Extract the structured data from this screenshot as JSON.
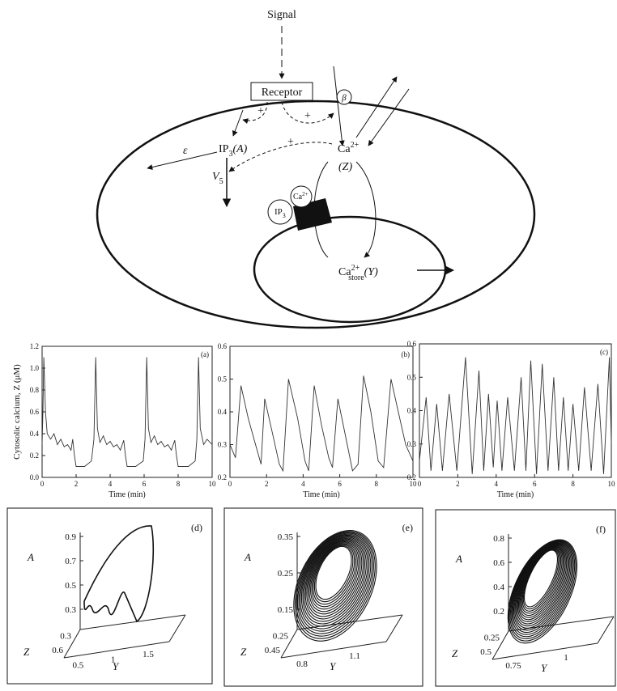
{
  "diagram": {
    "signal": "Signal",
    "receptor": "Receptor",
    "plus": [
      "+",
      "+",
      "+"
    ],
    "beta": "β",
    "epsilon": "ε",
    "ip3": {
      "text": "IP",
      "sub": "3",
      "suffix": "(A)"
    },
    "v5": {
      "text": "V",
      "sub": "5"
    },
    "ca": {
      "text": "Ca",
      "sup": "2+",
      "below": "(Z)"
    },
    "ca_store": {
      "text": "Ca",
      "sup": "2+",
      "sub": "store",
      "suffix": "(Y)"
    },
    "channel": {
      "ip3": "IP",
      "ip3_sub": "3",
      "ca": "Ca",
      "ca_sup": "2+"
    }
  },
  "chart_data": [
    {
      "type": "line",
      "label": "(a)",
      "ylabel": "Cytosolic calcium, Z (μM)",
      "xlabel": "Time (min)",
      "color": "#333",
      "xlim": [
        0,
        10
      ],
      "ylim": [
        0,
        1.2
      ],
      "xticks": [
        0,
        2,
        4,
        6,
        8,
        10
      ],
      "yticks": [
        {
          "value": 0,
          "label": "0.0"
        },
        0.2,
        0.4,
        0.6,
        0.8,
        {
          "value": 1,
          "label": "1.0"
        },
        1.2
      ],
      "x": [
        0,
        0.05,
        0.1,
        0.2,
        0.3,
        0.5,
        0.7,
        0.9,
        1.1,
        1.3,
        1.5,
        1.7,
        1.8,
        1.9,
        2.0,
        2.5,
        2.9,
        3.05,
        3.15,
        3.25,
        3.4,
        3.6,
        3.8,
        4.0,
        4.2,
        4.4,
        4.6,
        4.8,
        4.9,
        5.0,
        5.5,
        5.95,
        6.05,
        6.15,
        6.25,
        6.4,
        6.6,
        6.8,
        7.0,
        7.2,
        7.4,
        7.6,
        7.8,
        7.9,
        8.0,
        8.6,
        9.0,
        9.1,
        9.2,
        9.3,
        9.5,
        9.7,
        10
      ],
      "values": [
        0.3,
        0.6,
        1.1,
        0.6,
        0.4,
        0.35,
        0.4,
        0.3,
        0.35,
        0.28,
        0.3,
        0.25,
        0.35,
        0.2,
        0.1,
        0.1,
        0.15,
        0.35,
        1.1,
        0.45,
        0.32,
        0.38,
        0.3,
        0.33,
        0.28,
        0.3,
        0.25,
        0.34,
        0.2,
        0.1,
        0.1,
        0.15,
        0.35,
        1.1,
        0.45,
        0.32,
        0.38,
        0.3,
        0.33,
        0.28,
        0.3,
        0.25,
        0.34,
        0.2,
        0.1,
        0.1,
        0.15,
        0.35,
        1.1,
        0.45,
        0.3,
        0.35,
        0.3
      ]
    },
    {
      "type": "line",
      "label": "(b)",
      "xlabel": "Time (min)",
      "color": "#333",
      "xlim": [
        0,
        10
      ],
      "ylim": [
        0.2,
        0.6
      ],
      "xticks": [
        0,
        2,
        4,
        6,
        8,
        10
      ],
      "yticks": [
        0.2,
        0.3,
        0.4,
        0.5,
        0.6
      ],
      "x": [
        0,
        0.3,
        0.6,
        1.0,
        1.4,
        1.7,
        1.9,
        2.3,
        2.7,
        2.9,
        3.2,
        3.7,
        4.1,
        4.3,
        4.6,
        5.0,
        5.4,
        5.6,
        5.9,
        6.3,
        6.7,
        7.0,
        7.3,
        7.7,
        8.1,
        8.4,
        8.8,
        9.2,
        9.6,
        10
      ],
      "values": [
        0.3,
        0.26,
        0.48,
        0.38,
        0.3,
        0.24,
        0.44,
        0.34,
        0.24,
        0.22,
        0.5,
        0.38,
        0.25,
        0.22,
        0.48,
        0.36,
        0.26,
        0.23,
        0.44,
        0.33,
        0.22,
        0.24,
        0.51,
        0.4,
        0.25,
        0.23,
        0.5,
        0.4,
        0.3,
        0.25
      ]
    },
    {
      "type": "line",
      "label": "(c)",
      "xlabel": "Time (min)",
      "color": "#333",
      "xlim": [
        0,
        10
      ],
      "ylim": [
        0.2,
        0.6
      ],
      "xticks": [
        0,
        2,
        4,
        6,
        8,
        10
      ],
      "yticks": [
        0.2,
        0.3,
        0.4,
        0.5,
        0.6
      ],
      "x": [
        0,
        0.35,
        0.6,
        0.9,
        1.2,
        1.55,
        1.95,
        2.4,
        2.75,
        3.1,
        3.35,
        3.6,
        3.85,
        4.05,
        4.3,
        4.6,
        4.95,
        5.3,
        5.55,
        5.8,
        6.1,
        6.4,
        6.7,
        7.0,
        7.25,
        7.5,
        7.75,
        8.0,
        8.3,
        8.6,
        8.95,
        9.3,
        9.6,
        9.9,
        10
      ],
      "values": [
        0.25,
        0.44,
        0.22,
        0.42,
        0.22,
        0.45,
        0.22,
        0.56,
        0.21,
        0.52,
        0.22,
        0.45,
        0.23,
        0.43,
        0.22,
        0.44,
        0.22,
        0.5,
        0.22,
        0.55,
        0.21,
        0.54,
        0.22,
        0.5,
        0.22,
        0.44,
        0.22,
        0.42,
        0.22,
        0.47,
        0.22,
        0.48,
        0.21,
        0.56,
        0.3
      ]
    }
  ],
  "phase_plots": [
    {
      "label": "(d)",
      "a_label": "A",
      "z_label": "Z",
      "y_label": "Y",
      "a_ticks": [
        0.3,
        0.5,
        0.7,
        0.9
      ],
      "z_ticks": [
        0.3,
        0.6
      ],
      "y_ticks": [
        0.5,
        1,
        1.5
      ]
    },
    {
      "label": "(e)",
      "a_label": "A",
      "z_label": "Z",
      "y_label": "Y",
      "a_ticks": [
        0.15,
        0.25,
        0.35
      ],
      "z_ticks": [
        0.25,
        0.45
      ],
      "y_ticks": [
        0.8,
        1.1
      ]
    },
    {
      "label": "(f)",
      "a_label": "A",
      "z_label": "Z",
      "y_label": "Y",
      "a_ticks": [
        0.2,
        0.4,
        0.6,
        0.8
      ],
      "z_ticks": [
        0.25,
        0.5
      ],
      "y_ticks": [
        0.75,
        1
      ]
    }
  ]
}
